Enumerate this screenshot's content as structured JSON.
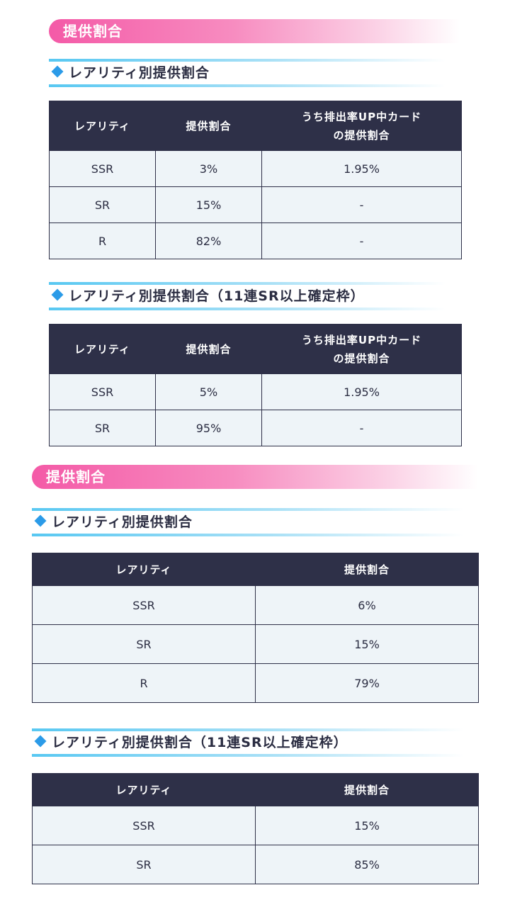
{
  "sections": [
    {
      "banner": "提供割合",
      "subsections": [
        {
          "title": "レアリティ別提供割合",
          "headers": [
            "レアリティ",
            "提供割合",
            "うち排出率UP中カード\nの提供割合"
          ],
          "rows": [
            [
              "SSR",
              "3%",
              "1.95%"
            ],
            [
              "SR",
              "15%",
              "-"
            ],
            [
              "R",
              "82%",
              "-"
            ]
          ]
        },
        {
          "title": "レアリティ別提供割合（11連SR以上確定枠）",
          "headers": [
            "レアリティ",
            "提供割合",
            "うち排出率UP中カード\nの提供割合"
          ],
          "rows": [
            [
              "SSR",
              "5%",
              "1.95%"
            ],
            [
              "SR",
              "95%",
              "-"
            ]
          ]
        }
      ]
    },
    {
      "banner": "提供割合",
      "subsections": [
        {
          "title": "レアリティ別提供割合",
          "headers": [
            "レアリティ",
            "提供割合"
          ],
          "rows": [
            [
              "SSR",
              "6%"
            ],
            [
              "SR",
              "15%"
            ],
            [
              "R",
              "79%"
            ]
          ]
        },
        {
          "title": "レアリティ別提供割合（11連SR以上確定枠）",
          "headers": [
            "レアリティ",
            "提供割合"
          ],
          "rows": [
            [
              "SSR",
              "15%"
            ],
            [
              "SR",
              "85%"
            ]
          ]
        }
      ]
    }
  ],
  "colors": {
    "banner_pink": "#f45aa7",
    "subhead_line_blue": "#58c8f2",
    "diamond_blue": "#2b9be8",
    "table_header_navy": "#2e3048",
    "table_cell_bg": "#eef4f8"
  },
  "icons": {
    "bullet": "diamond-bullet-icon"
  }
}
